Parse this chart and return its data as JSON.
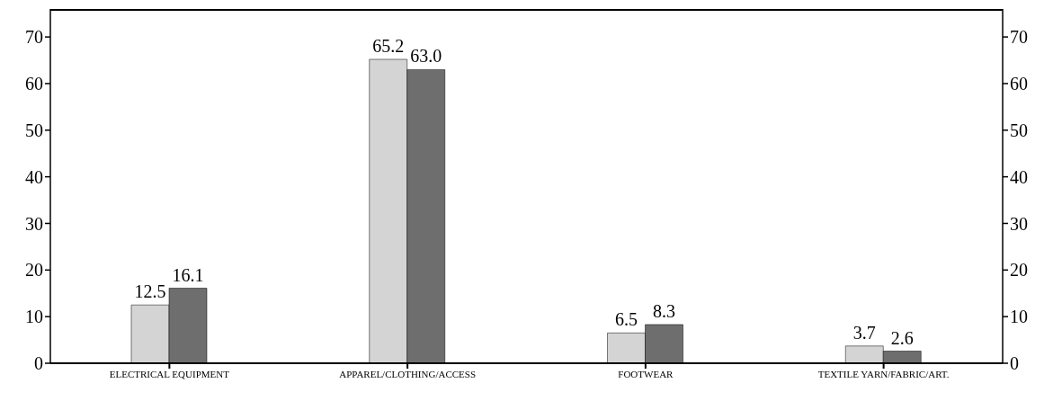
{
  "chart_data": {
    "type": "bar",
    "categories": [
      "ELECTRICAL EQUIPMENT",
      "APPAREL/CLOTHING/ACCESS",
      "FOOTWEAR",
      "TEXTILE YARN/FABRIC/ART."
    ],
    "series": [
      {
        "color": "#d4d4d4",
        "values": [
          12.5,
          65.2,
          6.5,
          3.7
        ],
        "value_labels": [
          "12.5",
          "65.2",
          "6.5",
          "3.7"
        ]
      },
      {
        "color": "#6e6e6e",
        "values": [
          16.1,
          63.0,
          8.3,
          2.6
        ],
        "value_labels": [
          "16.1",
          "63.0",
          "8.3",
          "2.6"
        ]
      }
    ],
    "ylim": [
      0,
      76
    ],
    "yticks": [
      0,
      10,
      20,
      30,
      40,
      50,
      60,
      70
    ],
    "y2lim": [
      0,
      76
    ],
    "y2ticks": [
      0,
      10,
      20,
      30,
      40,
      50,
      60,
      70
    ],
    "grid": false,
    "legend": false
  }
}
